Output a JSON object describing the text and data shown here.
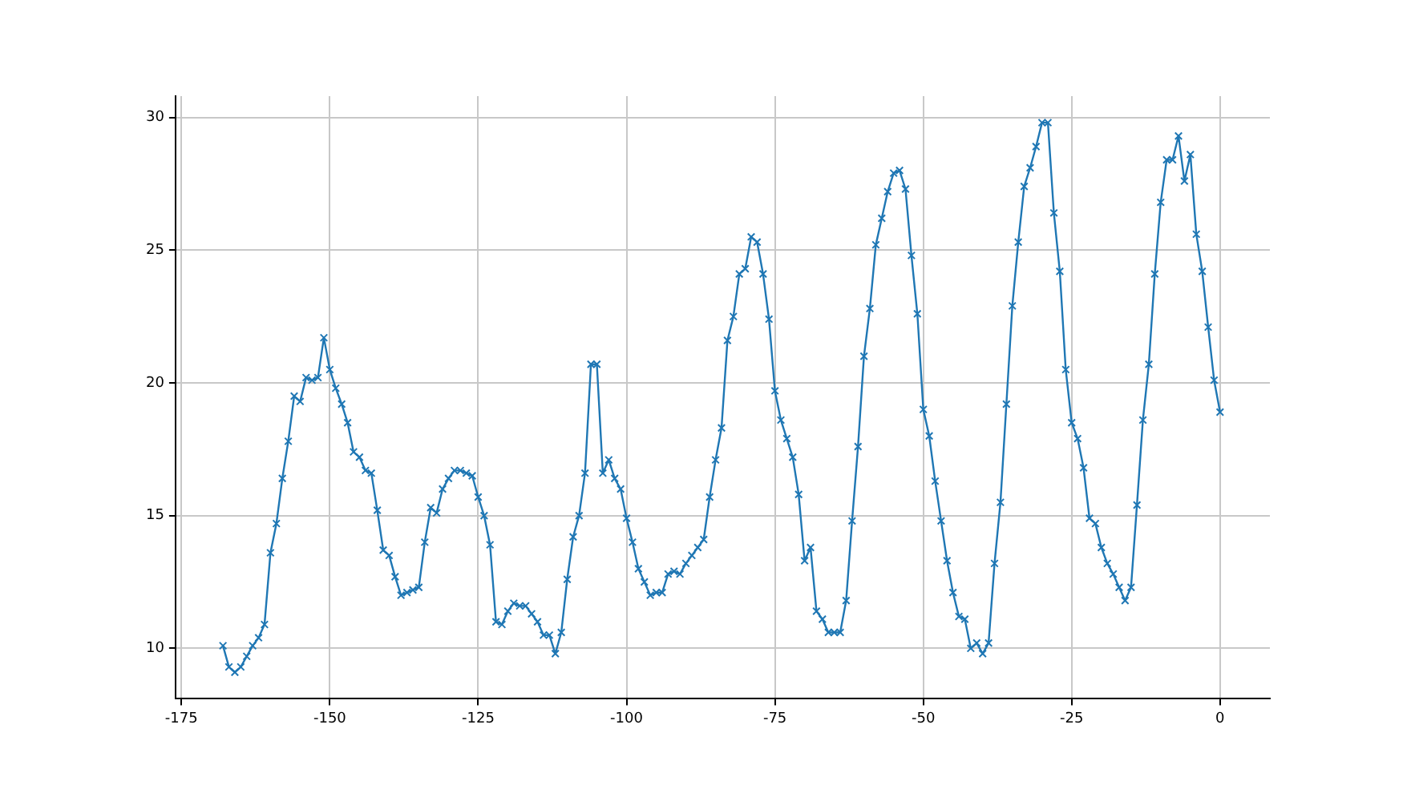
{
  "chart_data": {
    "type": "line",
    "x": [
      -168,
      -167,
      -166,
      -165,
      -164,
      -163,
      -162,
      -161,
      -160,
      -159,
      -158,
      -157,
      -156,
      -155,
      -154,
      -153,
      -152,
      -151,
      -150,
      -149,
      -148,
      -147,
      -146,
      -145,
      -144,
      -143,
      -142,
      -141,
      -140,
      -139,
      -138,
      -137,
      -136,
      -135,
      -134,
      -133,
      -132,
      -131,
      -130,
      -129,
      -128,
      -127,
      -126,
      -125,
      -124,
      -123,
      -122,
      -121,
      -120,
      -119,
      -118,
      -117,
      -116,
      -115,
      -114,
      -113,
      -112,
      -111,
      -110,
      -109,
      -108,
      -107,
      -106,
      -105,
      -104,
      -103,
      -102,
      -101,
      -100,
      -99,
      -98,
      -97,
      -96,
      -95,
      -94,
      -93,
      -92,
      -91,
      -90,
      -89,
      -88,
      -87,
      -86,
      -85,
      -84,
      -83,
      -82,
      -81,
      -80,
      -79,
      -78,
      -77,
      -76,
      -75,
      -74,
      -73,
      -72,
      -71,
      -70,
      -69,
      -68,
      -67,
      -66,
      -65,
      -64,
      -63,
      -62,
      -61,
      -60,
      -59,
      -58,
      -57,
      -56,
      -55,
      -54,
      -53,
      -52,
      -51,
      -50,
      -49,
      -48,
      -47,
      -46,
      -45,
      -44,
      -43,
      -42,
      -41,
      -40,
      -39,
      -38,
      -37,
      -36,
      -35,
      -34,
      -33,
      -32,
      -31,
      -30,
      -29,
      -28,
      -27,
      -26,
      -25,
      -24,
      -23,
      -22,
      -21,
      -20,
      -19,
      -18,
      -17,
      -16,
      -15,
      -14,
      -13,
      -12,
      -11,
      -10,
      -9,
      -8,
      -7,
      -6,
      -5,
      -4,
      -3,
      -2,
      -1,
      0
    ],
    "series": [
      {
        "color": "#1f77b4",
        "values": [
          10.1,
          9.3,
          9.1,
          9.3,
          9.7,
          10.1,
          10.4,
          10.9,
          13.6,
          14.7,
          16.4,
          17.8,
          19.5,
          19.3,
          20.2,
          20.1,
          20.2,
          21.7,
          20.5,
          19.8,
          19.2,
          18.5,
          17.4,
          17.2,
          16.7,
          16.6,
          15.2,
          13.7,
          13.5,
          12.7,
          12.0,
          12.1,
          12.2,
          12.3,
          14.0,
          15.3,
          15.1,
          16.0,
          16.4,
          16.7,
          16.7,
          16.6,
          16.5,
          15.7,
          15.0,
          13.9,
          11.0,
          10.9,
          11.4,
          11.7,
          11.6,
          11.6,
          11.3,
          11.0,
          10.5,
          10.5,
          9.8,
          10.6,
          12.6,
          14.2,
          15.0,
          16.6,
          20.7,
          20.7,
          16.6,
          17.1,
          16.4,
          16.0,
          14.9,
          14.0,
          13.0,
          12.5,
          12.0,
          12.1,
          12.1,
          12.8,
          12.9,
          12.8,
          13.2,
          13.5,
          13.8,
          14.1,
          15.7,
          17.1,
          18.3,
          21.6,
          22.5,
          24.1,
          24.3,
          25.5,
          25.3,
          24.1,
          22.4,
          19.7,
          18.6,
          17.9,
          17.2,
          15.8,
          13.3,
          13.8,
          11.4,
          11.1,
          10.6,
          10.6,
          10.6,
          11.8,
          14.8,
          17.6,
          21.0,
          22.8,
          25.2,
          26.2,
          27.2,
          27.9,
          28.0,
          27.3,
          24.8,
          22.6,
          19.0,
          18.0,
          16.3,
          14.8,
          13.3,
          12.1,
          11.2,
          11.1,
          10.0,
          10.2,
          9.8,
          10.2,
          13.2,
          15.5,
          19.2,
          22.9,
          25.3,
          27.4,
          28.1,
          28.9,
          29.8,
          29.8,
          26.4,
          24.2,
          20.5,
          18.5,
          17.9,
          16.8,
          14.9,
          14.7,
          13.8,
          13.2,
          12.8,
          12.3,
          11.8,
          12.3,
          15.4,
          18.6,
          20.7,
          24.1,
          26.8,
          28.4,
          28.4,
          29.3,
          27.6,
          28.6,
          25.6,
          24.2,
          22.1,
          20.1,
          18.9
        ]
      }
    ],
    "xlim": [
      -176,
      8.4
    ],
    "xticks": [
      -175,
      -150,
      -125,
      -100,
      -75,
      -50,
      -25,
      0
    ],
    "ylim": [
      8.1,
      30.8
    ],
    "yticks": [
      10,
      15,
      20,
      25,
      30
    ],
    "grid": true,
    "marker": "cross",
    "line_style": "solid"
  }
}
